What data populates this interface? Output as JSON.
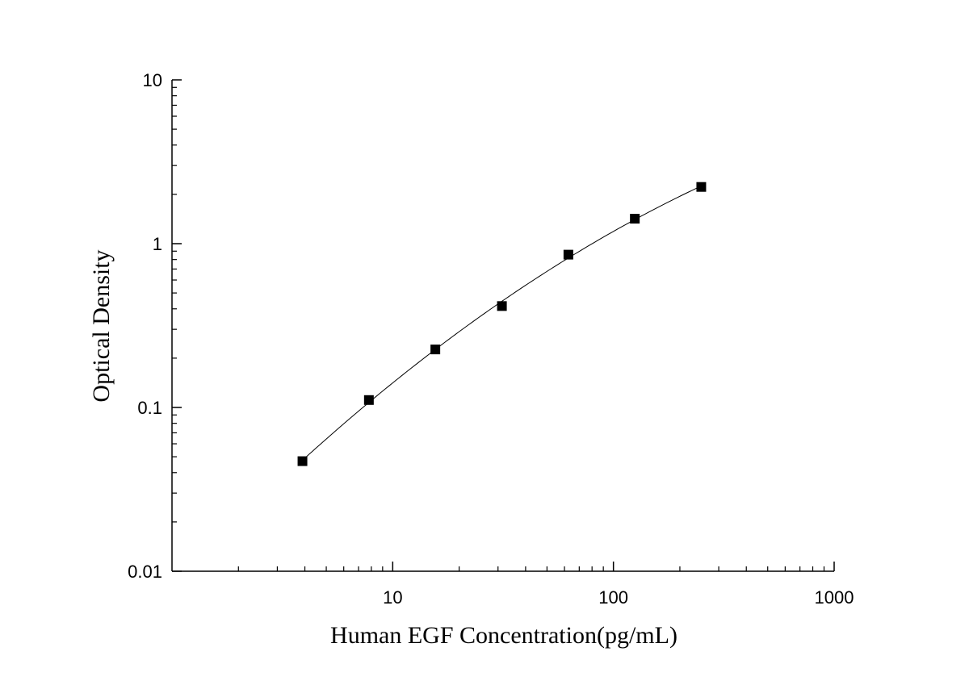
{
  "chart_data": {
    "type": "scatter",
    "title": "",
    "xlabel": "Human EGF Concentration(pg/mL)",
    "ylabel": "Optical Density",
    "x_scale": "log",
    "y_scale": "log",
    "xlim": [
      1,
      1000
    ],
    "ylim": [
      0.01,
      10
    ],
    "grid": false,
    "legend": "none",
    "x_ticks": [
      {
        "value": 10,
        "label": "10"
      },
      {
        "value": 100,
        "label": "100"
      },
      {
        "value": 1000,
        "label": "1000"
      }
    ],
    "y_ticks": [
      {
        "value": 0.01,
        "label": "0.01"
      },
      {
        "value": 0.1,
        "label": "0.1"
      },
      {
        "value": 1,
        "label": "1"
      },
      {
        "value": 10,
        "label": "10"
      }
    ],
    "series": [
      {
        "x": [
          3.9,
          7.8,
          15.6,
          31.25,
          62.5,
          125,
          250
        ],
        "y": [
          0.047,
          0.111,
          0.226,
          0.416,
          0.857,
          1.42,
          2.22
        ],
        "marker": "square",
        "color": "#000000",
        "fit_line": true
      }
    ]
  }
}
